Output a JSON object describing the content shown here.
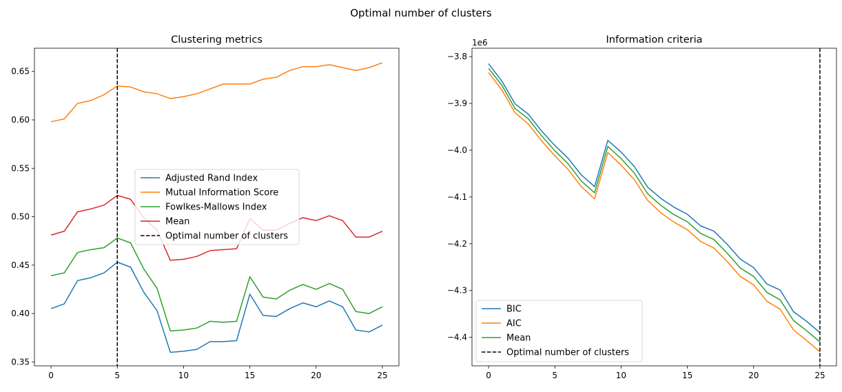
{
  "figure": {
    "suptitle": "Optimal number of clusters"
  },
  "chart_data": [
    {
      "type": "line",
      "title": "Clustering metrics",
      "xlabel": "",
      "ylabel": "",
      "xlim": [
        -1.25,
        26.25
      ],
      "ylim": [
        0.346,
        0.674
      ],
      "xticks": [
        0,
        5,
        10,
        15,
        20,
        25
      ],
      "xtick_labels": [
        "0",
        "5",
        "10",
        "15",
        "20",
        "25"
      ],
      "yticks": [
        0.35,
        0.4,
        0.45,
        0.5,
        0.55,
        0.6,
        0.65
      ],
      "ytick_labels": [
        "0.35",
        "0.40",
        "0.45",
        "0.50",
        "0.55",
        "0.60",
        "0.65"
      ],
      "grid": false,
      "legend_position": "center",
      "x": [
        0,
        1,
        2,
        3,
        4,
        5,
        6,
        7,
        8,
        9,
        10,
        11,
        12,
        13,
        14,
        15,
        16,
        17,
        18,
        19,
        20,
        21,
        22,
        23,
        24,
        25
      ],
      "series": [
        {
          "name": "Adjusted Rand Index",
          "color": "#1f77b4",
          "values": [
            0.405,
            0.41,
            0.434,
            0.437,
            0.442,
            0.453,
            0.448,
            0.422,
            0.403,
            0.36,
            0.361,
            0.363,
            0.371,
            0.371,
            0.372,
            0.42,
            0.398,
            0.397,
            0.405,
            0.411,
            0.407,
            0.413,
            0.407,
            0.383,
            0.381,
            0.388
          ]
        },
        {
          "name": "Mutual Information Score",
          "color": "#ff7f0e",
          "values": [
            0.598,
            0.601,
            0.617,
            0.62,
            0.626,
            0.635,
            0.634,
            0.629,
            0.627,
            0.622,
            0.624,
            0.627,
            0.632,
            0.637,
            0.637,
            0.637,
            0.642,
            0.644,
            0.651,
            0.655,
            0.655,
            0.657,
            0.654,
            0.651,
            0.654,
            0.659
          ]
        },
        {
          "name": "Fowlkes-Mallows Index",
          "color": "#2ca02c",
          "values": [
            0.439,
            0.442,
            0.463,
            0.466,
            0.468,
            0.478,
            0.473,
            0.446,
            0.426,
            0.382,
            0.383,
            0.385,
            0.392,
            0.391,
            0.392,
            0.438,
            0.417,
            0.415,
            0.424,
            0.43,
            0.425,
            0.431,
            0.425,
            0.402,
            0.4,
            0.407
          ]
        },
        {
          "name": "Mean",
          "color": "#d62728",
          "values": [
            0.481,
            0.485,
            0.505,
            0.508,
            0.512,
            0.522,
            0.518,
            0.499,
            0.486,
            0.455,
            0.456,
            0.459,
            0.465,
            0.466,
            0.467,
            0.498,
            0.486,
            0.486,
            0.493,
            0.499,
            0.496,
            0.501,
            0.496,
            0.479,
            0.479,
            0.485
          ]
        }
      ],
      "optimal": {
        "name": "Optimal number of clusters",
        "x": 5,
        "color": "#000000"
      }
    },
    {
      "type": "line",
      "title": "Information criteria",
      "xlabel": "",
      "ylabel": "",
      "offset_text": "1e6",
      "xlim": [
        -1.25,
        26.25
      ],
      "ylim": [
        -4.461,
        -3.782
      ],
      "xticks": [
        0,
        5,
        10,
        15,
        20,
        25
      ],
      "xtick_labels": [
        "0",
        "5",
        "10",
        "15",
        "20",
        "25"
      ],
      "yticks": [
        -3.8,
        -3.9,
        -4.0,
        -4.1,
        -4.2,
        -4.3,
        -4.4
      ],
      "ytick_labels": [
        "−3.8",
        "−3.9",
        "−4.0",
        "−4.1",
        "−4.2",
        "−4.3",
        "−4.4"
      ],
      "grid": false,
      "legend_position": "lower-left",
      "x": [
        0,
        1,
        2,
        3,
        4,
        5,
        6,
        7,
        8,
        9,
        10,
        11,
        12,
        13,
        14,
        15,
        16,
        17,
        18,
        19,
        20,
        21,
        22,
        23,
        24,
        25
      ],
      "series": [
        {
          "name": "BIC",
          "color": "#1f77b4",
          "values": [
            -3.815,
            -3.852,
            -3.901,
            -3.923,
            -3.959,
            -3.99,
            -4.017,
            -4.053,
            -4.078,
            -3.979,
            -4.004,
            -4.035,
            -4.079,
            -4.103,
            -4.122,
            -4.137,
            -4.162,
            -4.173,
            -4.201,
            -4.233,
            -4.251,
            -4.286,
            -4.299,
            -4.345,
            -4.366,
            -4.39
          ]
        },
        {
          "name": "AIC",
          "color": "#ff7f0e",
          "values": [
            -3.834,
            -3.871,
            -3.92,
            -3.944,
            -3.98,
            -4.012,
            -4.041,
            -4.078,
            -4.104,
            -4.005,
            -4.032,
            -4.063,
            -4.107,
            -4.134,
            -4.154,
            -4.17,
            -4.195,
            -4.209,
            -4.238,
            -4.27,
            -4.288,
            -4.323,
            -4.34,
            -4.384,
            -4.407,
            -4.431
          ]
        },
        {
          "name": "Mean",
          "color": "#2ca02c",
          "values": [
            -3.825,
            -3.861,
            -3.911,
            -3.933,
            -3.969,
            -4.001,
            -4.029,
            -4.066,
            -4.091,
            -3.992,
            -4.018,
            -4.049,
            -4.093,
            -4.118,
            -4.138,
            -4.153,
            -4.178,
            -4.191,
            -4.22,
            -4.252,
            -4.27,
            -4.304,
            -4.32,
            -4.364,
            -4.386,
            -4.41
          ]
        }
      ],
      "optimal": {
        "name": "Optimal number of clusters",
        "x": 25,
        "color": "#000000"
      }
    }
  ]
}
